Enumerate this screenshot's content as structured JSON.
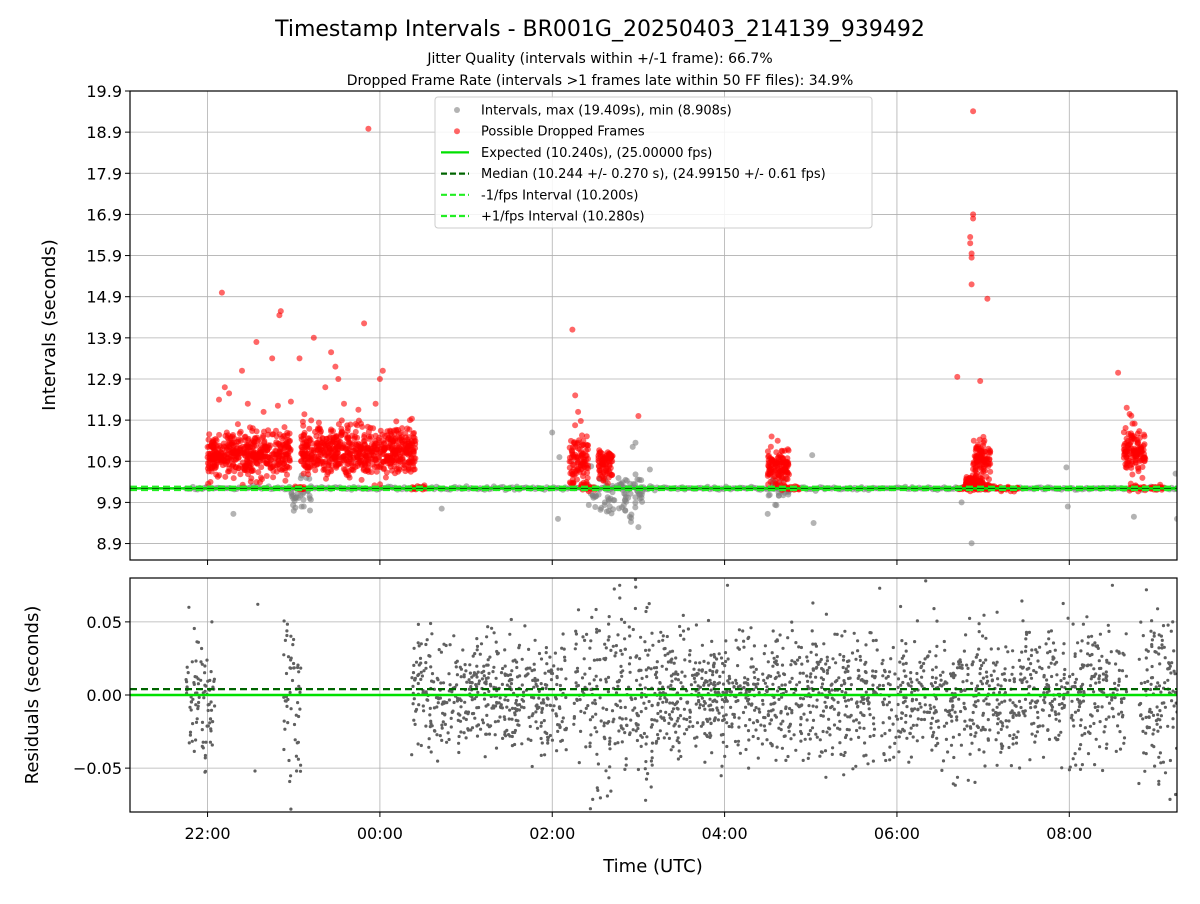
{
  "chart_data": {
    "title": "Timestamp Intervals - BR001G_20250403_214139_939492",
    "subtitles": [
      "Jitter Quality (intervals within +/-1 frame): 66.7%",
      "Dropped Frame Rate (intervals >1 frames late within 50 FF files): 34.9%"
    ],
    "xlabel": "Time (UTC)",
    "x_range": [
      "21:06",
      "09:15"
    ],
    "x_ticks": [
      "22:00",
      "00:00",
      "02:00",
      "04:00",
      "06:00",
      "08:00"
    ],
    "colors": {
      "intervals": "#808080",
      "dropped": "#ff0000",
      "expected": "#00e000",
      "median": "#006400",
      "fps_band": "#22ee22",
      "residuals": "#606060"
    },
    "top": {
      "type": "scatter",
      "ylabel": "Intervals (seconds)",
      "ylim": [
        8.5,
        19.9
      ],
      "y_ticks": [
        "19.9",
        "18.9",
        "17.9",
        "16.9",
        "15.9",
        "14.9",
        "13.9",
        "12.9",
        "11.9",
        "10.9",
        "9.9",
        "8.9"
      ],
      "grid": true,
      "legend_position": "top-center",
      "legend": [
        {
          "label": "Intervals, max (19.409s), min (8.908s)",
          "kind": "dot-gray"
        },
        {
          "label": "Possible Dropped Frames",
          "kind": "dot-red"
        },
        {
          "label": "Expected (10.240s), (25.00000 fps)",
          "kind": "line-expected"
        },
        {
          "label": "Median (10.244 +/- 0.270 s), (24.99150 +/- 0.61 fps)",
          "kind": "line-median"
        },
        {
          "label": "-1/fps Interval (10.200s)",
          "kind": "line-band"
        },
        {
          "label": "+1/fps Interval (10.280s)",
          "kind": "line-band"
        }
      ],
      "expected": 10.24,
      "median": 10.244,
      "minus_fps": 10.2,
      "plus_fps": 10.28,
      "baseline_ranges": [
        [
          "21:45",
          "09:15"
        ]
      ],
      "gray_scatter_clusters": [
        {
          "start": "22:58",
          "end": "23:12",
          "center": 10.05,
          "spread": 0.3
        },
        {
          "start": "02:25",
          "end": "03:05",
          "center": 10.05,
          "spread": 0.45
        },
        {
          "start": "04:30",
          "end": "04:45",
          "center": 10.2,
          "spread": 0.3
        }
      ],
      "red_clusters": [
        {
          "start": "22:00",
          "end": "22:58",
          "center": 11.05,
          "spread": 0.45
        },
        {
          "start": "23:05",
          "end": "00:25",
          "center": 11.15,
          "spread": 0.5
        },
        {
          "start": "02:12",
          "end": "02:25",
          "center": 10.95,
          "spread": 0.55
        },
        {
          "start": "02:32",
          "end": "02:42",
          "center": 10.85,
          "spread": 0.35
        },
        {
          "start": "04:30",
          "end": "04:45",
          "center": 10.75,
          "spread": 0.35
        },
        {
          "start": "06:48",
          "end": "07:00",
          "center": 10.35,
          "spread": 0.15
        },
        {
          "start": "06:53",
          "end": "07:05",
          "center": 11.0,
          "spread": 0.4
        },
        {
          "start": "08:38",
          "end": "08:53",
          "center": 11.15,
          "spread": 0.45
        }
      ],
      "red_on_baseline_ranges": [
        [
          "23:01",
          "23:08"
        ],
        [
          "00:22",
          "00:32"
        ],
        [
          "02:20",
          "02:30"
        ],
        [
          "04:40",
          "04:52"
        ],
        [
          "06:42",
          "07:25"
        ],
        [
          "08:42",
          "08:53"
        ],
        [
          "08:56",
          "09:06"
        ]
      ],
      "red_outliers": [
        {
          "t": "22:10",
          "v": 15.0
        },
        {
          "t": "22:08",
          "v": 12.4
        },
        {
          "t": "22:12",
          "v": 12.7
        },
        {
          "t": "22:15",
          "v": 12.55
        },
        {
          "t": "22:24",
          "v": 13.1
        },
        {
          "t": "22:28",
          "v": 12.3
        },
        {
          "t": "22:34",
          "v": 13.8
        },
        {
          "t": "22:39",
          "v": 12.1
        },
        {
          "t": "22:45",
          "v": 13.4
        },
        {
          "t": "22:49",
          "v": 12.25
        },
        {
          "t": "22:50",
          "v": 14.45
        },
        {
          "t": "22:51",
          "v": 14.55
        },
        {
          "t": "22:58",
          "v": 12.35
        },
        {
          "t": "23:04",
          "v": 13.4
        },
        {
          "t": "23:14",
          "v": 13.9
        },
        {
          "t": "23:22",
          "v": 12.7
        },
        {
          "t": "23:26",
          "v": 13.55
        },
        {
          "t": "23:29",
          "v": 13.2
        },
        {
          "t": "23:31",
          "v": 12.9
        },
        {
          "t": "23:35",
          "v": 12.3
        },
        {
          "t": "23:45",
          "v": 12.15
        },
        {
          "t": "23:49",
          "v": 14.25
        },
        {
          "t": "23:52",
          "v": 18.98
        },
        {
          "t": "23:57",
          "v": 12.3
        },
        {
          "t": "00:00",
          "v": 12.9
        },
        {
          "t": "00:02",
          "v": 13.1
        },
        {
          "t": "02:14",
          "v": 14.1
        },
        {
          "t": "02:16",
          "v": 12.5
        },
        {
          "t": "02:18",
          "v": 12.1
        },
        {
          "t": "03:00",
          "v": 12.0
        },
        {
          "t": "04:37",
          "v": 11.4
        },
        {
          "t": "06:42",
          "v": 12.95
        },
        {
          "t": "06:51",
          "v": 16.35
        },
        {
          "t": "06:51",
          "v": 16.2
        },
        {
          "t": "06:52",
          "v": 15.95
        },
        {
          "t": "06:52",
          "v": 15.85
        },
        {
          "t": "06:52",
          "v": 15.2
        },
        {
          "t": "06:53",
          "v": 16.9
        },
        {
          "t": "06:53",
          "v": 16.8
        },
        {
          "t": "06:53",
          "v": 19.409
        },
        {
          "t": "06:58",
          "v": 12.85
        },
        {
          "t": "07:03",
          "v": 14.85
        },
        {
          "t": "08:34",
          "v": 13.05
        },
        {
          "t": "08:40",
          "v": 12.2
        },
        {
          "t": "08:42",
          "v": 12.05
        }
      ],
      "gray_outliers": [
        {
          "t": "22:18",
          "v": 9.62
        },
        {
          "t": "23:07",
          "v": 9.8
        },
        {
          "t": "00:43",
          "v": 9.75
        },
        {
          "t": "02:00",
          "v": 11.6
        },
        {
          "t": "02:04",
          "v": 9.5
        },
        {
          "t": "02:05",
          "v": 11.0
        },
        {
          "t": "02:54",
          "v": 9.55
        },
        {
          "t": "02:58",
          "v": 11.35
        },
        {
          "t": "03:00",
          "v": 9.3
        },
        {
          "t": "02:56",
          "v": 11.25
        },
        {
          "t": "03:08",
          "v": 10.7
        },
        {
          "t": "04:30",
          "v": 9.62
        },
        {
          "t": "05:01",
          "v": 11.05
        },
        {
          "t": "05:02",
          "v": 9.4
        },
        {
          "t": "06:45",
          "v": 9.9
        },
        {
          "t": "06:52",
          "v": 8.908
        },
        {
          "t": "07:58",
          "v": 10.75
        },
        {
          "t": "07:59",
          "v": 9.8
        },
        {
          "t": "08:45",
          "v": 9.55
        },
        {
          "t": "09:15",
          "v": 9.5
        },
        {
          "t": "09:14",
          "v": 10.6
        }
      ]
    },
    "bottom": {
      "type": "scatter",
      "ylabel": "Residuals (seconds)",
      "ylim": [
        -0.08,
        0.08
      ],
      "y_ticks": [
        "0.05",
        "0.00",
        "−0.05"
      ],
      "y_tick_values": [
        0.05,
        0.0,
        -0.05
      ],
      "grid": true,
      "expected_residual": 0.0,
      "median_residual": 0.004,
      "clusters": [
        {
          "start": "21:45",
          "end": "22:05",
          "spread": 0.022
        },
        {
          "start": "22:53",
          "end": "23:05",
          "spread": 0.03
        },
        {
          "start": "00:22",
          "end": "02:10",
          "spread": 0.018
        },
        {
          "start": "02:15",
          "end": "03:10",
          "spread": 0.035
        },
        {
          "start": "03:10",
          "end": "08:40",
          "spread": 0.022
        },
        {
          "start": "08:48",
          "end": "09:15",
          "spread": 0.028
        }
      ],
      "outliers": [
        {
          "t": "21:47",
          "v": 0.06
        },
        {
          "t": "22:03",
          "v": 0.05
        },
        {
          "t": "22:35",
          "v": 0.062
        },
        {
          "t": "22:33",
          "v": -0.052
        },
        {
          "t": "22:58",
          "v": -0.078
        },
        {
          "t": "23:02",
          "v": -0.052
        },
        {
          "t": "02:47",
          "v": 0.075
        },
        {
          "t": "02:58",
          "v": 0.079
        },
        {
          "t": "03:05",
          "v": -0.072
        },
        {
          "t": "04:02",
          "v": 0.075
        },
        {
          "t": "05:48",
          "v": 0.073
        },
        {
          "t": "06:20",
          "v": 0.078
        },
        {
          "t": "08:30",
          "v": 0.075
        },
        {
          "t": "09:12",
          "v": 0.05
        },
        {
          "t": "09:14",
          "v": -0.068
        }
      ]
    }
  }
}
